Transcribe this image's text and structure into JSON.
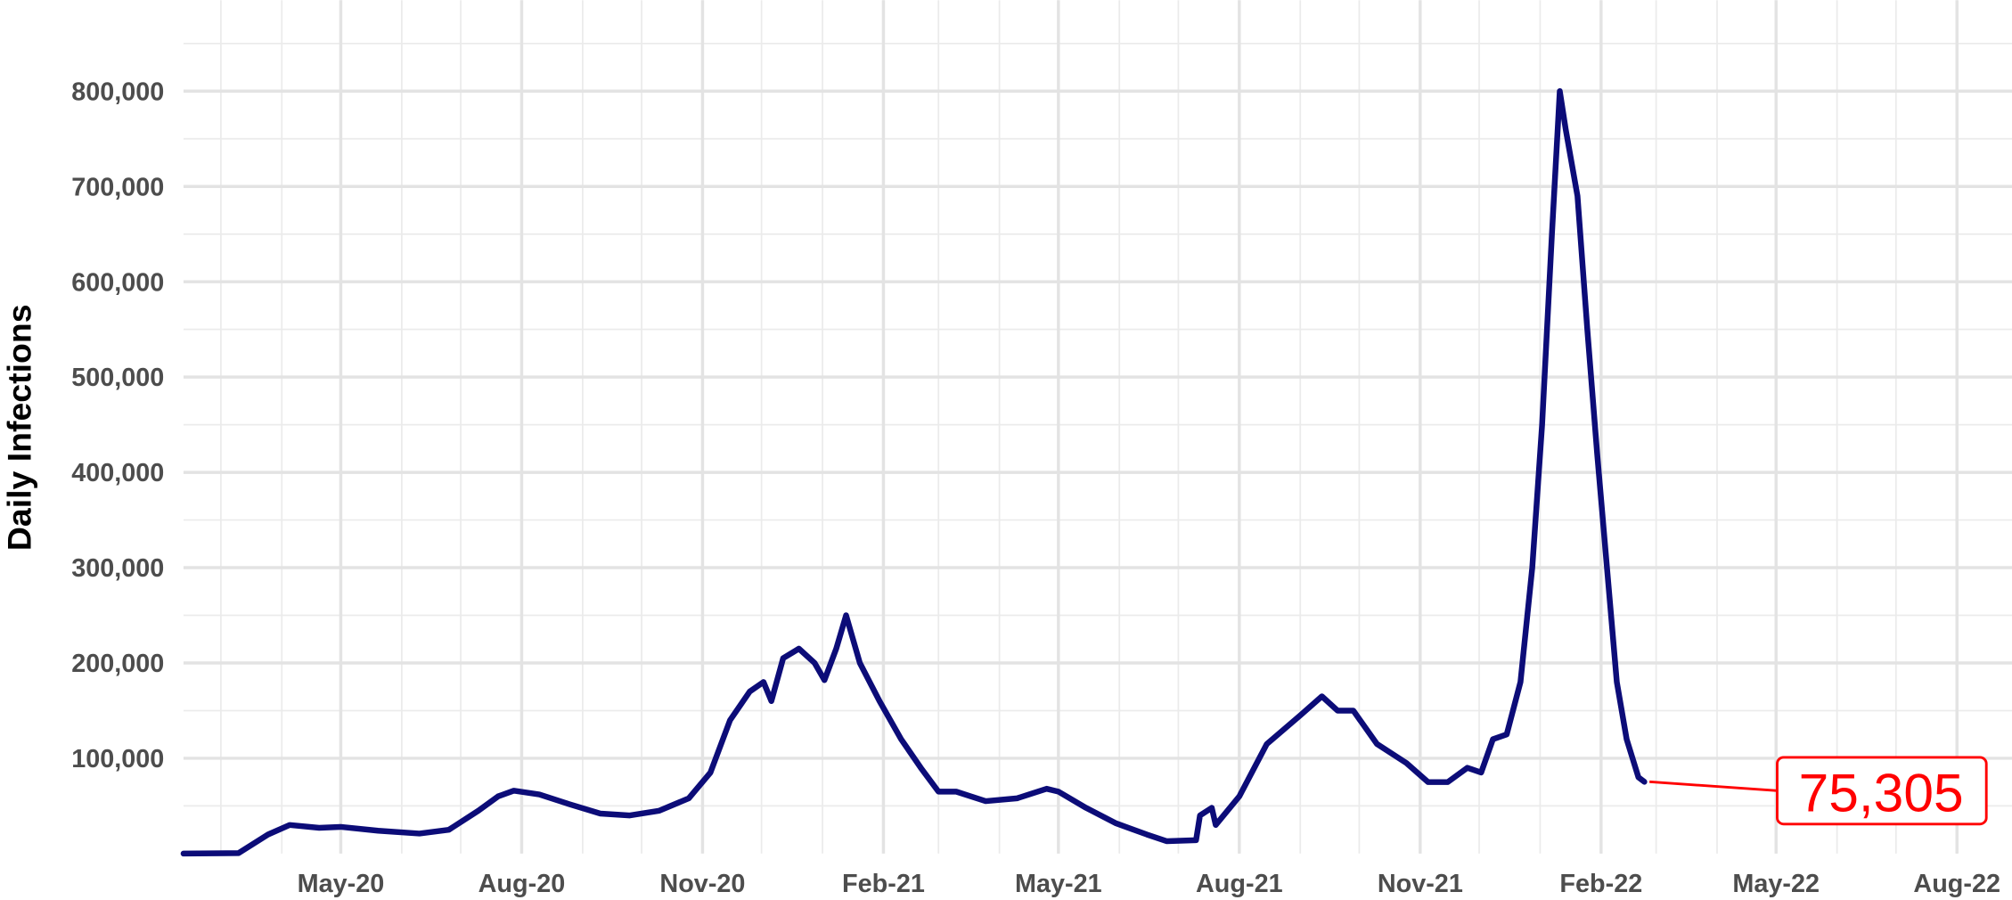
{
  "chart_data": {
    "type": "line",
    "y_label": "Daily Infections",
    "annotation": "75,305",
    "annotation_color": "#ff0000",
    "grid": true,
    "xlim": [
      "2020-02-11",
      "2022-08-29"
    ],
    "ylim": [
      0,
      890000
    ],
    "xticks": [
      {
        "value": "2020-05-01",
        "label": "May-20"
      },
      {
        "value": "2020-08-01",
        "label": "Aug-20"
      },
      {
        "value": "2020-11-01",
        "label": "Nov-20"
      },
      {
        "value": "2021-02-01",
        "label": "Feb-21"
      },
      {
        "value": "2021-05-01",
        "label": "May-21"
      },
      {
        "value": "2021-08-01",
        "label": "Aug-21"
      },
      {
        "value": "2021-11-01",
        "label": "Nov-21"
      },
      {
        "value": "2022-02-01",
        "label": "Feb-22"
      },
      {
        "value": "2022-05-01",
        "label": "May-22"
      },
      {
        "value": "2022-08-01",
        "label": "Aug-22"
      }
    ],
    "yticks": [
      {
        "value": 100000,
        "label": "100,000"
      },
      {
        "value": 200000,
        "label": "200,000"
      },
      {
        "value": 300000,
        "label": "300,000"
      },
      {
        "value": 400000,
        "label": "400,000"
      },
      {
        "value": 500000,
        "label": "500,000"
      },
      {
        "value": 600000,
        "label": "600,000"
      },
      {
        "value": 700000,
        "label": "700,000"
      },
      {
        "value": 800000,
        "label": "800,000"
      }
    ],
    "x": [
      "2020-02-11",
      "2020-03-10",
      "2020-03-25",
      "2020-04-05",
      "2020-04-20",
      "2020-05-01",
      "2020-05-20",
      "2020-06-10",
      "2020-06-25",
      "2020-07-10",
      "2020-07-20",
      "2020-07-28",
      "2020-08-10",
      "2020-08-25",
      "2020-09-10",
      "2020-09-25",
      "2020-10-10",
      "2020-10-25",
      "2020-11-05",
      "2020-11-15",
      "2020-11-25",
      "2020-12-02",
      "2020-12-06",
      "2020-12-12",
      "2020-12-20",
      "2020-12-28",
      "2021-01-02",
      "2021-01-08",
      "2021-01-13",
      "2021-01-20",
      "2021-01-30",
      "2021-02-10",
      "2021-02-20",
      "2021-03-01",
      "2021-03-10",
      "2021-03-25",
      "2021-04-10",
      "2021-04-25",
      "2021-05-01",
      "2021-05-15",
      "2021-05-30",
      "2021-06-15",
      "2021-06-25",
      "2021-07-10",
      "2021-07-12",
      "2021-07-18",
      "2021-07-20",
      "2021-08-01",
      "2021-08-15",
      "2021-09-01",
      "2021-09-12",
      "2021-09-20",
      "2021-09-28",
      "2021-10-10",
      "2021-10-25",
      "2021-11-05",
      "2021-11-15",
      "2021-11-25",
      "2021-12-02",
      "2021-12-08",
      "2021-12-15",
      "2021-12-22",
      "2021-12-28",
      "2022-01-02",
      "2022-01-07",
      "2022-01-11",
      "2022-01-14",
      "2022-01-20",
      "2022-01-25",
      "2022-01-30",
      "2022-02-04",
      "2022-02-09",
      "2022-02-14",
      "2022-02-20",
      "2022-02-23"
    ],
    "series": [
      {
        "name": "Daily Infections",
        "color": "#0c0c78",
        "values": [
          0,
          500,
          20000,
          30000,
          27000,
          28000,
          24000,
          21000,
          25000,
          45000,
          60000,
          66000,
          62000,
          52000,
          42000,
          40000,
          45000,
          58000,
          85000,
          140000,
          170000,
          180000,
          160000,
          205000,
          215000,
          200000,
          182000,
          215000,
          250000,
          200000,
          160000,
          120000,
          90000,
          65000,
          65000,
          55000,
          58000,
          68000,
          65000,
          48000,
          32000,
          20000,
          13000,
          14000,
          40000,
          48000,
          30000,
          60000,
          115000,
          145000,
          165000,
          150000,
          150000,
          115000,
          95000,
          75000,
          75000,
          90000,
          85000,
          120000,
          125000,
          180000,
          300000,
          450000,
          650000,
          800000,
          760000,
          690000,
          550000,
          420000,
          300000,
          180000,
          120000,
          80000,
          75305
        ]
      }
    ]
  }
}
